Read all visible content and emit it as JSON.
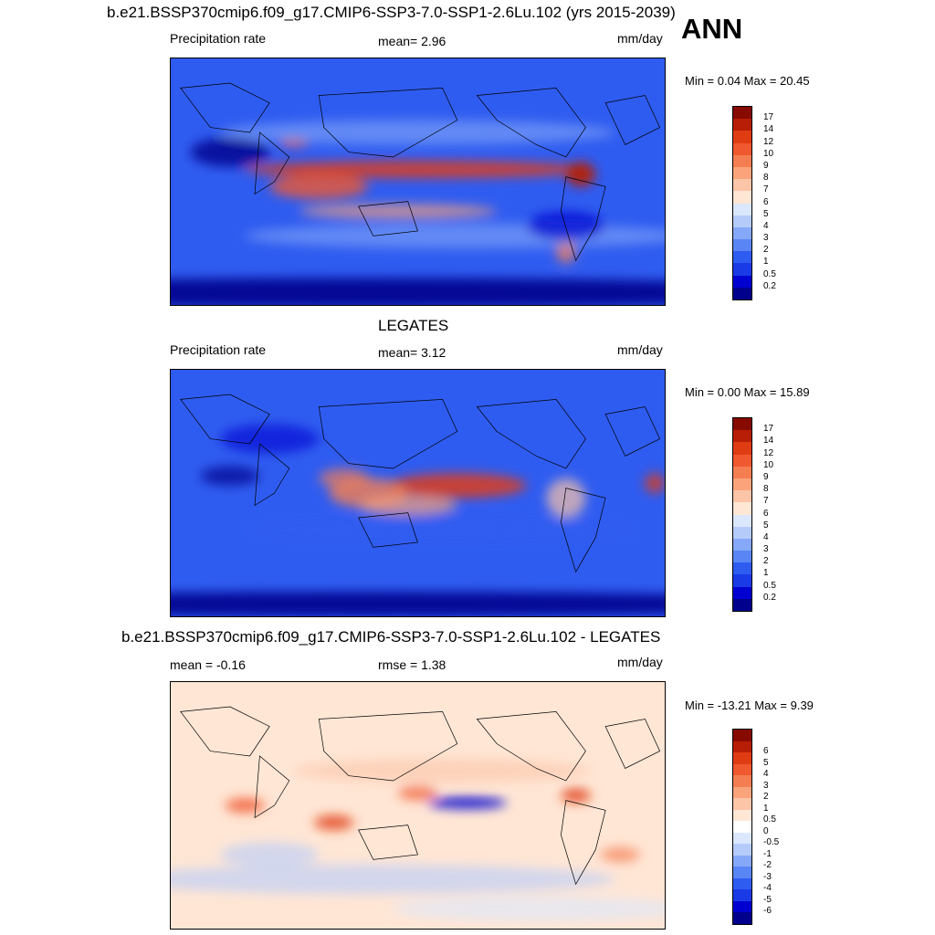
{
  "figure": {
    "season": "ANN"
  },
  "colors": {
    "abs_scale": [
      "#00008c",
      "#0000d0",
      "#1a3ae6",
      "#2f5cf0",
      "#5a86f5",
      "#86a8f8",
      "#b5ccfb",
      "#dbe7fd",
      "#ffe6d5",
      "#fcc5a8",
      "#fba37a",
      "#f47e52",
      "#f0582f",
      "#e03c14",
      "#b81e05",
      "#870a00"
    ],
    "diff_scale": [
      "#00008c",
      "#0000d0",
      "#1a3ae6",
      "#2f5cf0",
      "#5a86f5",
      "#86a8f8",
      "#b5ccfb",
      "#dbe7fd",
      "#ffffff",
      "#ffe6d5",
      "#fcc5a8",
      "#fba37a",
      "#f47e52",
      "#f0582f",
      "#e03c14",
      "#b81e05",
      "#870a00"
    ]
  },
  "panels": [
    {
      "id": "model",
      "title": "b.e21.BSSP370cmip6.f09_g17.CMIP6-SSP3-7.0-SSP1-2.6Lu.102 (yrs 2015-2039)",
      "left_label": "Precipitation rate",
      "center_label": "mean=   2.96",
      "units": "mm/day",
      "minmax": "Min =   0.04 Max =  20.45"
    },
    {
      "id": "obs",
      "title": "LEGATES",
      "left_label": "Precipitation rate",
      "center_label": "mean=   3.12",
      "units": "mm/day",
      "minmax": "Min =   0.00 Max =  15.89"
    },
    {
      "id": "diff",
      "title": "b.e21.BSSP370cmip6.f09_g17.CMIP6-SSP3-7.0-SSP1-2.6Lu.102 - LEGATES",
      "left_label": "mean =  -0.16",
      "center_label": "rmse =   1.38",
      "units": "mm/day",
      "minmax": "Min = -13.21 Max =   9.39"
    }
  ],
  "chart_data": [
    {
      "type": "heatmap",
      "title": "b.e21.BSSP370cmip6.f09_g17.CMIP6-SSP3-7.0-SSP1-2.6Lu.102 (yrs 2015-2039)",
      "variable": "Precipitation rate",
      "units": "mm/day",
      "mean": 2.96,
      "min": 0.04,
      "max": 20.45,
      "colorbar_levels": [
        "0.2",
        "0.5",
        "1",
        "2",
        "3",
        "4",
        "5",
        "6",
        "7",
        "8",
        "9",
        "10",
        "12",
        "14",
        "17"
      ]
    },
    {
      "type": "heatmap",
      "title": "LEGATES",
      "variable": "Precipitation rate",
      "units": "mm/day",
      "mean": 3.12,
      "min": 0.0,
      "max": 15.89,
      "colorbar_levels": [
        "0.2",
        "0.5",
        "1",
        "2",
        "3",
        "4",
        "5",
        "6",
        "7",
        "8",
        "9",
        "10",
        "12",
        "14",
        "17"
      ]
    },
    {
      "type": "heatmap",
      "title": "b.e21.BSSP370cmip6.f09_g17.CMIP6-SSP3-7.0-SSP1-2.6Lu.102 - LEGATES",
      "units": "mm/day",
      "mean": -0.16,
      "rmse": 1.38,
      "min": -13.21,
      "max": 9.39,
      "colorbar_levels": [
        "-6",
        "-5",
        "-4",
        "-3",
        "-2",
        "-1",
        "-0.5",
        "0",
        "0.5",
        "1",
        "2",
        "3",
        "4",
        "5",
        "6"
      ]
    }
  ]
}
